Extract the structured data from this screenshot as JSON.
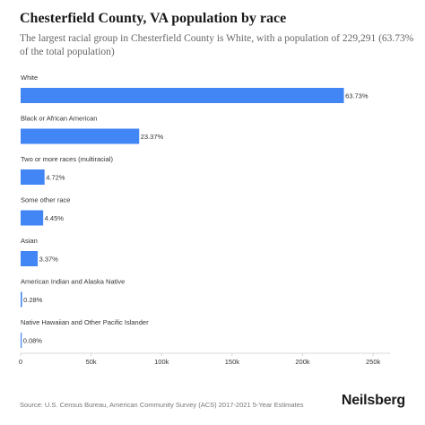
{
  "header": {
    "title": "Chesterfield County, VA population by race",
    "subtitle": "The largest racial group in Chesterfield County is White, with a population of 229,291 (63.73% of the total population)"
  },
  "footer": {
    "source": "Source: U.S. Census Bureau, American Community Survey (ACS) 2017-2021 5-Year Estimates",
    "brand": "Neilsberg"
  },
  "chart_data": {
    "type": "bar",
    "orientation": "horizontal",
    "categories": [
      "White",
      "Black or African American",
      "Two or more races (multiracial)",
      "Some other race",
      "Asian",
      "American Indian and Alaska Native",
      "Native Hawaiian and Other Pacific Islander"
    ],
    "values": [
      229291,
      84083,
      16982,
      16011,
      12125,
      1007,
      288
    ],
    "data_labels": [
      "63.73%",
      "23.37%",
      "4.72%",
      "4.45%",
      "3.37%",
      "0.28%",
      "0.08%"
    ],
    "xlim": [
      0,
      262000
    ],
    "xticks": [
      0,
      50000,
      100000,
      150000,
      200000,
      250000
    ],
    "xtick_labels": [
      "0",
      "50k",
      "100k",
      "150k",
      "200k",
      "250k"
    ],
    "bar_color": "#4285f4",
    "grid": false
  }
}
